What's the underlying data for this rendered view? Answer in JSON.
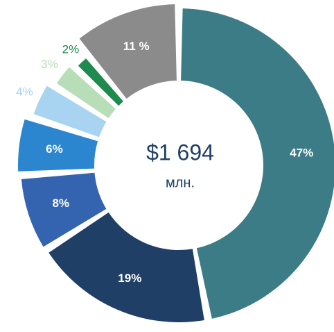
{
  "chart_data": {
    "type": "donut",
    "center_label": "$1 694",
    "center_unit": "млн.",
    "categories": [
      null,
      null,
      null,
      null,
      null,
      null,
      null,
      null
    ],
    "values": [
      47,
      19,
      8,
      6,
      4,
      3,
      2,
      11
    ],
    "value_labels": [
      "47%",
      "19%",
      "8%",
      "6%",
      "4%",
      "3%",
      "2%",
      "11 %"
    ],
    "colors": [
      "#3c7c86",
      "#1f3f66",
      "#3463b0",
      "#2b86cf",
      "#a8d3f1",
      "#b8deb8",
      "#1e8a4e",
      "#8b8b8b"
    ]
  }
}
